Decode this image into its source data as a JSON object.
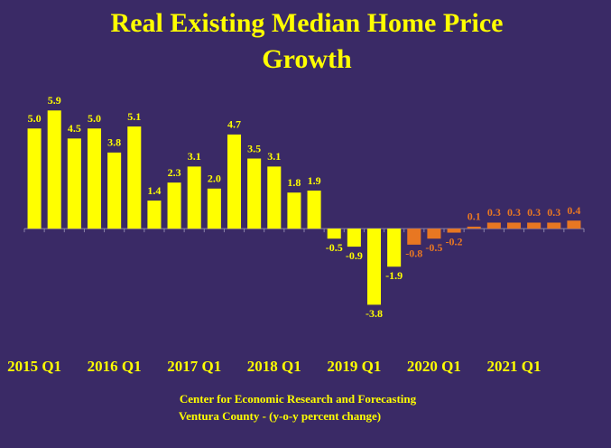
{
  "chart_data": {
    "type": "bar",
    "title": [
      "Real Existing Median Home Price",
      "Growth"
    ],
    "source": [
      "Center for Economic Research and Forecasting",
      "Ventura County - (y-o-y percent change)"
    ],
    "categories": [
      "2015 Q1",
      null,
      null,
      null,
      "2016 Q1",
      null,
      null,
      null,
      "2017 Q1",
      null,
      null,
      null,
      "2018 Q1",
      null,
      null,
      null,
      "2019 Q1",
      null,
      null,
      null,
      "2020 Q1",
      null,
      null,
      null,
      "2021 Q1",
      null,
      null,
      null
    ],
    "values": [
      5.0,
      5.9,
      4.5,
      5.0,
      3.8,
      5.1,
      1.4,
      2.3,
      3.1,
      2.0,
      4.7,
      3.5,
      3.1,
      1.8,
      1.9,
      -0.5,
      -0.9,
      -3.8,
      -1.9,
      -0.8,
      -0.5,
      -0.2,
      0.1,
      0.3,
      0.3,
      0.3,
      0.3,
      0.4
    ],
    "value_labels": [
      "5.0",
      "5.9",
      "4.5",
      "5.0",
      "3.8",
      "5.1",
      "1.4",
      "2.3",
      "3.1",
      "2.0",
      "4.7",
      "3.5",
      "3.1",
      "1.8",
      "1.9",
      "-0.5",
      "-0.9",
      "-3.8",
      "-1.9",
      "-0.8",
      "-0.5",
      "-0.2",
      "0.1",
      "0.3",
      "0.3",
      "0.3",
      "0.3",
      "0.4"
    ],
    "colors": [
      "#ffff00",
      "#ffff00",
      "#ffff00",
      "#ffff00",
      "#ffff00",
      "#ffff00",
      "#ffff00",
      "#ffff00",
      "#ffff00",
      "#ffff00",
      "#ffff00",
      "#ffff00",
      "#ffff00",
      "#ffff00",
      "#ffff00",
      "#ffff00",
      "#ffff00",
      "#ffff00",
      "#ffff00",
      "#e87722",
      "#e87722",
      "#e87722",
      "#e87722",
      "#e87722",
      "#e87722",
      "#e87722",
      "#e87722",
      "#e87722"
    ],
    "ylim": [
      -5,
      6.5
    ]
  }
}
